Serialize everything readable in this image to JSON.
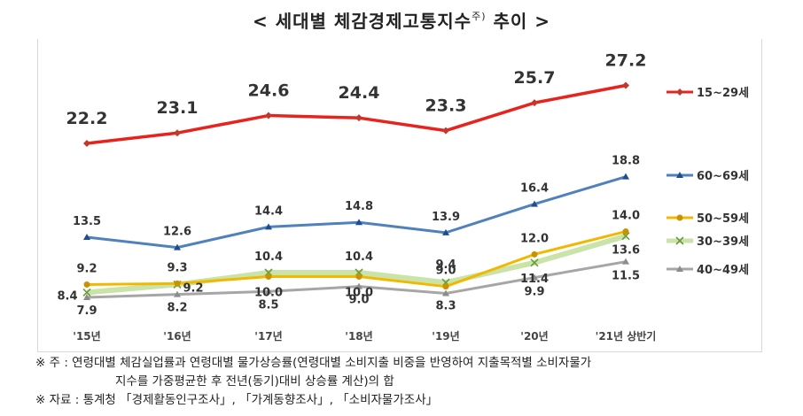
{
  "title_main": "< 세대별  체감경제고통지수",
  "title_sup": "주)",
  "title_tail": " 추이 >",
  "chart_data": {
    "type": "line",
    "categories": [
      "'15년",
      "'16년",
      "'17년",
      "'18년",
      "'19년",
      "'20년",
      "'21년 상반기"
    ],
    "series": [
      {
        "name": "15~29세",
        "values": [
          22.2,
          23.1,
          24.6,
          24.4,
          23.3,
          25.7,
          27.2
        ],
        "color": "#e8231e",
        "marker": "diamond"
      },
      {
        "name": "60~69세",
        "values": [
          13.5,
          12.6,
          14.4,
          14.8,
          13.9,
          16.4,
          18.8
        ],
        "color": "#4f81bd",
        "marker": "triangle"
      },
      {
        "name": "50~59세",
        "values": [
          9.2,
          9.3,
          10.0,
          10.0,
          9.0,
          12.0,
          14.0
        ],
        "color": "#f2b800",
        "marker": "circle"
      },
      {
        "name": "30~39세",
        "values": [
          8.4,
          9.2,
          10.4,
          10.4,
          9.4,
          11.4,
          13.6
        ],
        "color": "#c9e3a8",
        "marker": "x"
      },
      {
        "name": "40~49세",
        "values": [
          7.9,
          8.2,
          8.5,
          9.0,
          8.3,
          9.9,
          11.5
        ],
        "color": "#a6a6a6",
        "marker": "triangle"
      }
    ],
    "legend_position": "right",
    "grid": false,
    "ylim": [
      5,
      30
    ]
  },
  "notes": {
    "note1_line1": "※ 주 :  연령대별 체감실업률과 연령대별 물가상승률(연령대별 소비지출 비중을 반영하여 지출목적별 소비자물가",
    "note1_line2": "지수를 가중평균한 후 전년(동기)대비 상승률 계산)의 합",
    "note2": "※ 자료 :  통계청 「경제활동인구조사」, 「가계동향조사」, 「소비자물가조사」"
  }
}
